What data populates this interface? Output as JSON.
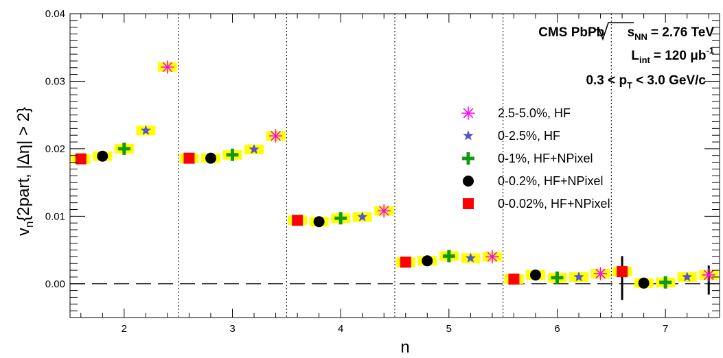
{
  "chart_data": {
    "type": "scatter",
    "xlabel": "n",
    "ylabel_main": "v",
    "ylabel_sub": "n",
    "ylabel_rest": "{2part, |Δη| > 2}",
    "xlim": [
      1.5,
      7.5
    ],
    "ylim": [
      -0.005,
      0.04
    ],
    "x_ticks": [
      2,
      3,
      4,
      5,
      6,
      7
    ],
    "y_ticks": [
      {
        "value": 0.0,
        "label": "0.00"
      },
      {
        "value": 0.01,
        "label": "0.01"
      },
      {
        "value": 0.02,
        "label": "0.02"
      },
      {
        "value": 0.03,
        "label": "0.03"
      },
      {
        "value": 0.04,
        "label": "0.04"
      }
    ],
    "separators": [
      2.5,
      3.5,
      4.5,
      5.5,
      6.5
    ],
    "zero_line": 0.0,
    "syst_color": "#ffff00",
    "info": {
      "line1_prefix": "CMS PbPb",
      "sqrt_var": "s",
      "sqrt_sub": "NN",
      "line1_suffix": "= 2.76 TeV",
      "line2_main": "L",
      "line2_sub": "int",
      "line2_eq": "= 120 μb",
      "line2_sup": "-1",
      "line3_left": "0.3 < p",
      "line3_sub": "T",
      "line3_right": "< 3.0 GeV/c"
    },
    "series": [
      {
        "name": "2.5-5.0%, HF",
        "marker": "asterisk",
        "color": "#ff00ff",
        "points": [
          {
            "x": 2.4,
            "y": 0.0321
          },
          {
            "x": 3.4,
            "y": 0.0219
          },
          {
            "x": 4.4,
            "y": 0.0108
          },
          {
            "x": 5.4,
            "y": 0.004
          },
          {
            "x": 6.4,
            "y": 0.0015
          },
          {
            "x": 7.4,
            "y": 0.0013
          }
        ]
      },
      {
        "name": "0-2.5%, HF",
        "marker": "star",
        "color": "#5555cc",
        "points": [
          {
            "x": 2.2,
            "y": 0.0227
          },
          {
            "x": 3.2,
            "y": 0.0199
          },
          {
            "x": 4.2,
            "y": 0.0099
          },
          {
            "x": 5.2,
            "y": 0.0038
          },
          {
            "x": 6.2,
            "y": 0.001
          },
          {
            "x": 7.2,
            "y": 0.001
          }
        ]
      },
      {
        "name": "0-1%, HF+NPixel",
        "marker": "cross",
        "color": "#119911",
        "points": [
          {
            "x": 2.0,
            "y": 0.02
          },
          {
            "x": 3.0,
            "y": 0.0191
          },
          {
            "x": 4.0,
            "y": 0.0097
          },
          {
            "x": 5.0,
            "y": 0.0041
          },
          {
            "x": 6.0,
            "y": 0.0009
          },
          {
            "x": 7.0,
            "y": 0.0002
          }
        ]
      },
      {
        "name": "0-0.2%, HF+NPixel",
        "marker": "circle",
        "color": "#000000",
        "points": [
          {
            "x": 1.8,
            "y": 0.0189
          },
          {
            "x": 2.8,
            "y": 0.0186
          },
          {
            "x": 3.8,
            "y": 0.0092
          },
          {
            "x": 4.8,
            "y": 0.0034
          },
          {
            "x": 5.8,
            "y": 0.0013
          },
          {
            "x": 6.8,
            "y": 0.0001
          }
        ]
      },
      {
        "name": "0-0.02%, HF+NPixel",
        "marker": "square",
        "color": "#ff0000",
        "points": [
          {
            "x": 1.6,
            "y": 0.0185
          },
          {
            "x": 2.6,
            "y": 0.0186
          },
          {
            "x": 3.6,
            "y": 0.0094
          },
          {
            "x": 4.6,
            "y": 0.0032
          },
          {
            "x": 5.6,
            "y": 0.0007
          },
          {
            "x": 6.6,
            "y": 0.0018
          }
        ]
      }
    ],
    "error_bars": [
      {
        "x": 6.6,
        "low": -0.0024,
        "high": 0.0041
      },
      {
        "x": 7.4,
        "low": -0.0016,
        "high": 0.0027
      }
    ]
  }
}
